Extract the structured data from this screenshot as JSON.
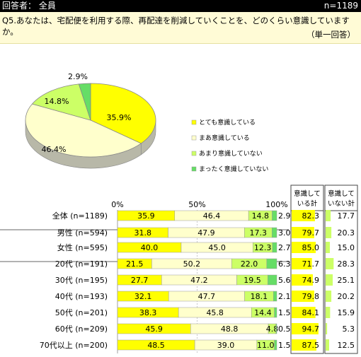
{
  "header": {
    "respondents": "回答者： 全員",
    "n": "n=1189"
  },
  "question": {
    "text": "Q5.あなたは、宅配便を利用する際、再配達を削減していくことを、どのくらい意識していますか。",
    "answer_type": "（単一回答）"
  },
  "colors": {
    "very": "#ffff00",
    "somewhat": "#ffffcc",
    "not_much": "#ccff66",
    "not_at_all": "#66dd66",
    "pie_side": "#b8b8a8"
  },
  "chart_data": [
    {
      "type": "pie",
      "categories": [
        "とても意識している",
        "まあ意識している",
        "あまり意識していない",
        "まったく意識していない"
      ],
      "values": [
        35.9,
        46.4,
        14.8,
        2.9
      ],
      "labels": [
        "35.9%",
        "46.4%",
        "14.8%",
        "2.9%"
      ],
      "legend": "right"
    },
    {
      "type": "bar",
      "stacked": true,
      "orientation": "horizontal",
      "x_tick_labels": [
        "0%",
        "50%",
        "100%"
      ],
      "xlim": [
        0,
        100
      ],
      "categories": [
        "全体 (n=1189)",
        "男性 (n=594)",
        "女性 (n=595)",
        "20代 (n=191)",
        "30代 (n=195)",
        "40代 (n=193)",
        "50代 (n=201)",
        "60代 (n=209)",
        "70代以上 (n=200)"
      ],
      "series": [
        {
          "name": "とても意識している",
          "values": [
            35.9,
            31.8,
            40.0,
            21.5,
            27.7,
            32.1,
            38.3,
            45.9,
            48.5
          ],
          "labels": [
            "35.9",
            "31.8",
            "40.0",
            "21.5",
            "27.7",
            "32.1",
            "38.3",
            "45.9",
            "48.5"
          ]
        },
        {
          "name": "まあ意識している",
          "values": [
            46.4,
            47.9,
            45.0,
            50.2,
            47.2,
            47.7,
            45.8,
            48.8,
            39.0
          ],
          "labels": [
            "46.4",
            "47.9",
            "45.0",
            "50.2",
            "47.2",
            "47.7",
            "45.8",
            "48.8",
            "39.0"
          ]
        },
        {
          "name": "あまり意識していない",
          "values": [
            14.8,
            17.3,
            12.3,
            22.0,
            19.5,
            18.1,
            14.4,
            4.8,
            11.0
          ],
          "labels": [
            "14.8",
            "17.3",
            "12.3",
            "22.0",
            "19.5",
            "18.1",
            "14.4",
            "4.8",
            "11.0"
          ]
        },
        {
          "name": "まったく意識していない",
          "values": [
            2.9,
            3.0,
            2.7,
            6.3,
            5.6,
            2.1,
            1.5,
            0.5,
            1.5
          ],
          "labels": [
            "2.9",
            "3.0",
            "2.7",
            "6.3",
            "5.6",
            "2.1",
            "1.5",
            "0.5",
            "1.5"
          ]
        }
      ]
    },
    {
      "type": "table",
      "unit": "（%）",
      "columns": [
        "意識している計",
        "意識していない計"
      ],
      "aware_total": [
        82.3,
        79.7,
        85.0,
        71.7,
        74.9,
        79.8,
        84.1,
        94.7,
        87.5
      ],
      "aware_labels": [
        "82.3",
        "79.7",
        "85.0",
        "71.7",
        "74.9",
        "79.8",
        "84.1",
        "94.7",
        "87.5"
      ],
      "unaware_total": [
        17.7,
        20.3,
        15.0,
        28.3,
        25.1,
        20.2,
        15.9,
        5.3,
        12.5
      ],
      "unaware_labels": [
        "17.7",
        "20.3",
        "15.0",
        "28.3",
        "25.1",
        "20.2",
        "15.9",
        "5.3",
        "12.5"
      ]
    }
  ]
}
